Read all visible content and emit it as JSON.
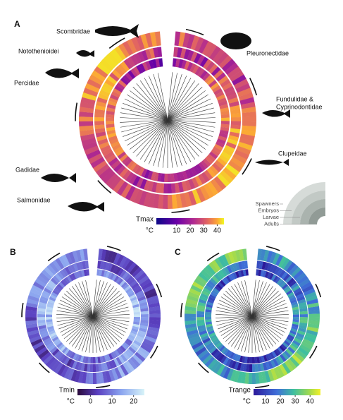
{
  "panels": [
    {
      "label": "A",
      "colorbar": {
        "title": "Tmax",
        "unit": "°C",
        "lim": [
          -5,
          45
        ],
        "ticks": [
          10,
          20,
          30,
          40
        ]
      }
    },
    {
      "label": "B",
      "colorbar": {
        "title": "Tmin",
        "unit": "°C",
        "lim": [
          -6,
          25
        ],
        "ticks": [
          0,
          10,
          20
        ]
      }
    },
    {
      "label": "C",
      "colorbar": {
        "title": "Trange",
        "unit": "°C",
        "lim": [
          2,
          47
        ],
        "ticks": [
          10,
          20,
          30,
          40
        ]
      }
    }
  ],
  "families": [
    {
      "lines": [
        "Scombridae"
      ]
    },
    {
      "lines": [
        "Notothenioidei"
      ]
    },
    {
      "lines": [
        "Percidae"
      ]
    },
    {
      "lines": [
        "Gadidae"
      ]
    },
    {
      "lines": [
        "Salmonidae"
      ]
    },
    {
      "lines": [
        "Pleuronectidae"
      ]
    },
    {
      "lines": [
        "Fundulidae &",
        "Cyprinodontidae"
      ]
    },
    {
      "lines": [
        "Clupeidae"
      ]
    }
  ],
  "life_stages": [
    "Spawners",
    "Embryos",
    "Larvae",
    "Adults"
  ]
}
